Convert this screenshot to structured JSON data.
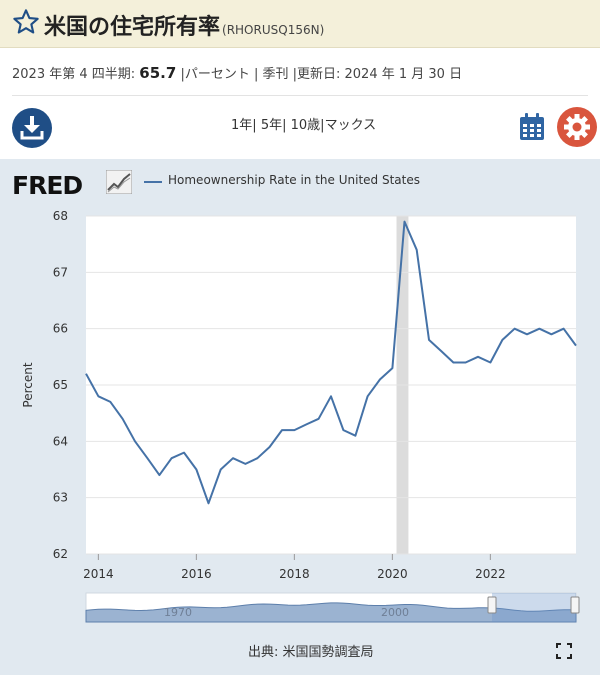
{
  "header": {
    "title": "米国の住宅所有率",
    "series_id": "(RHORUSQ156N)"
  },
  "meta": {
    "period_label": "2023 年第 4 四半期:",
    "value": "65.7",
    "units_freq": "|パーセント | 季刊 |",
    "updated_label": "更新日:",
    "updated_date": "2024 年 1 月 30 日"
  },
  "toolbar": {
    "ranges": [
      "1年",
      "5年",
      "10歳",
      "マックス"
    ],
    "separator": "|"
  },
  "logo": {
    "text": "FRED"
  },
  "source": "出典: 米国国勢調査局",
  "icons": {
    "star": "star-outline-icon",
    "download": "download-icon",
    "calendar": "calendar-icon",
    "settings": "gear-icon",
    "fullscreen": "fullscreen-icon"
  },
  "colors": {
    "series": "#4572a7",
    "header_bg": "#f4f0da",
    "panel_bg": "#e1e9f0",
    "download_btn": "#1f4e86",
    "settings_btn": "#d9553d",
    "recession_band": "#dcdcdc",
    "navigator_fill": "#9bb3d1"
  },
  "chart_data": {
    "type": "line",
    "series": [
      {
        "name": "Homeownership Rate in the United States",
        "x": [
          "2013-10-01",
          "2014-01-01",
          "2014-04-01",
          "2014-07-01",
          "2014-10-01",
          "2015-01-01",
          "2015-04-01",
          "2015-07-01",
          "2015-10-01",
          "2016-01-01",
          "2016-04-01",
          "2016-07-01",
          "2016-10-01",
          "2017-01-01",
          "2017-04-01",
          "2017-07-01",
          "2017-10-01",
          "2018-01-01",
          "2018-04-01",
          "2018-07-01",
          "2018-10-01",
          "2019-01-01",
          "2019-04-01",
          "2019-07-01",
          "2019-10-01",
          "2020-01-01",
          "2020-04-01",
          "2020-07-01",
          "2020-10-01",
          "2021-01-01",
          "2021-04-01",
          "2021-07-01",
          "2021-10-01",
          "2022-01-01",
          "2022-04-01",
          "2022-07-01",
          "2022-10-01",
          "2023-01-01",
          "2023-04-01",
          "2023-07-01",
          "2023-10-01"
        ],
        "values": [
          65.2,
          64.8,
          64.7,
          64.4,
          64.0,
          63.7,
          63.4,
          63.7,
          63.8,
          63.5,
          62.9,
          63.5,
          63.7,
          63.6,
          63.7,
          63.9,
          64.2,
          64.2,
          64.3,
          64.4,
          64.8,
          64.2,
          64.1,
          64.8,
          65.1,
          65.3,
          67.9,
          67.4,
          65.8,
          65.6,
          65.4,
          65.4,
          65.5,
          65.4,
          65.8,
          66.0,
          65.9,
          66.0,
          65.9,
          66.0,
          65.7
        ]
      }
    ],
    "xlabel": "",
    "ylabel": "Percent",
    "ylim": [
      62,
      68
    ],
    "yticks": [
      "62",
      "63",
      "64",
      "65",
      "66",
      "67",
      "68"
    ],
    "xticks": [
      "2014",
      "2016",
      "2018",
      "2020",
      "2022"
    ],
    "recession": [
      "2020-02-01",
      "2020-04-30"
    ],
    "grid": true,
    "legend_position": "top-left",
    "navigator": {
      "labels": [
        "1970",
        "2000"
      ],
      "type": "area"
    }
  }
}
